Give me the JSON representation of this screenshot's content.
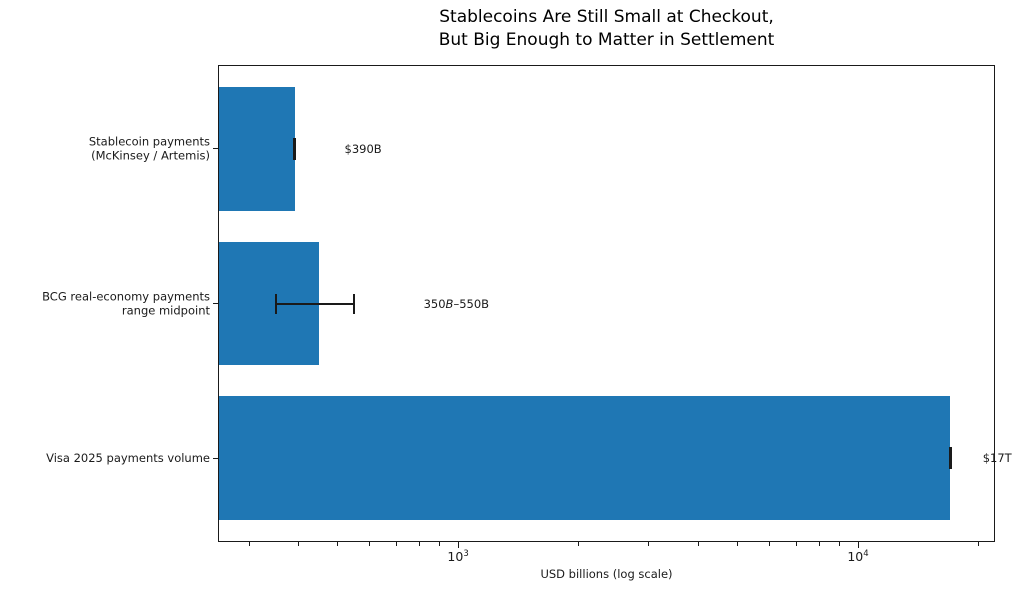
{
  "chart_data": {
    "type": "bar",
    "orientation": "horizontal",
    "title": "Stablecoins Are Still Small at Checkout,\nBut Big Enough to Matter in Settlement",
    "title_line1": "Stablecoins Are Still Small at Checkout,",
    "title_line2": "But Big Enough to Matter in Settlement",
    "xlabel": "USD billions (log scale)",
    "ylabel": "",
    "xscale": "log",
    "xlim": [
      251,
      22000
    ],
    "grid": false,
    "legend": null,
    "bar_color": "#1f77b4",
    "error_color": "#1a1a1a",
    "categories": [
      "Stablecoin payments (McKinsey / Artemis)",
      "BCG real-economy payments range midpoint",
      "Visa 2025 payments volume"
    ],
    "bars": [
      {
        "category_lines": [
          "Stablecoin payments",
          "(McKinsey / Artemis)"
        ],
        "value": 390,
        "error_low": 390,
        "error_high": 390,
        "annotation": "$390B",
        "annotation_parts": [
          {
            "text": "$390B",
            "italic": false
          }
        ],
        "annotation_x": 520
      },
      {
        "category_lines": [
          "BCG real-economy payments",
          "range midpoint"
        ],
        "value": 450,
        "error_low": 350,
        "error_high": 550,
        "annotation": "350B–550B",
        "annotation_parts": [
          {
            "text": "350",
            "italic": false
          },
          {
            "text": "B",
            "italic": true
          },
          {
            "text": "–550B",
            "italic": false
          }
        ],
        "annotation_x": 820
      },
      {
        "category_lines": [
          "Visa 2025 payments volume"
        ],
        "value": 17000,
        "error_low": 17000,
        "error_high": 17000,
        "annotation": "$17T",
        "annotation_parts": [
          {
            "text": "$17T",
            "italic": false
          }
        ],
        "annotation_x": 20500
      }
    ],
    "x_major_ticks": [
      {
        "value": 1000,
        "label_base": "10",
        "label_exp": "3"
      },
      {
        "value": 10000,
        "label_base": "10",
        "label_exp": "4"
      }
    ],
    "x_minor_ticks": [
      300,
      400,
      500,
      600,
      700,
      800,
      900,
      2000,
      3000,
      4000,
      5000,
      6000,
      7000,
      8000,
      9000,
      20000
    ]
  }
}
